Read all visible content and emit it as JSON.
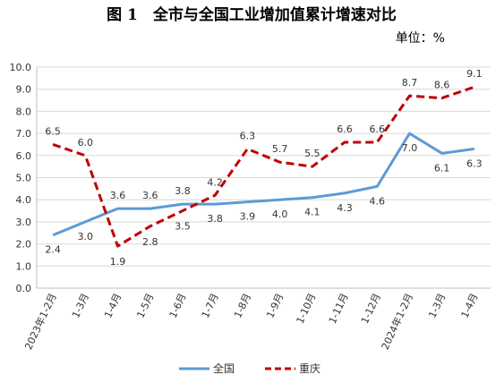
{
  "chart_data": {
    "type": "line",
    "title": "图 1　全市与全国工业增加值累计增速对比",
    "unit": "单位：%",
    "xlabel": "",
    "ylabel": "",
    "ylim": [
      0,
      10
    ],
    "yticks": [
      "0.0",
      "1.0",
      "2.0",
      "3.0",
      "4.0",
      "5.0",
      "6.0",
      "7.0",
      "8.0",
      "9.0",
      "10.0"
    ],
    "grid": true,
    "legend_position": "bottom",
    "categories": [
      "2023年1-2月",
      "1-3月",
      "1-4月",
      "1-5月",
      "1-6月",
      "1-7月",
      "1-8月",
      "1-9月",
      "1-10月",
      "1-11月",
      "1-12月",
      "2024年1-2月",
      "1-3月",
      "1-4月"
    ],
    "series": [
      {
        "name": "全国",
        "color": "#5B9BD5",
        "dash": "solid",
        "values": [
          2.4,
          3.0,
          3.6,
          3.6,
          3.8,
          3.8,
          3.9,
          4.0,
          4.1,
          4.3,
          4.6,
          7.0,
          6.1,
          6.3
        ],
        "labels": [
          "2.4",
          "3.0",
          "3.6",
          "3.6",
          "3.8",
          "3.8",
          "3.9",
          "4.0",
          "4.1",
          "4.3",
          "4.6",
          "7.0",
          "6.1",
          "6.3"
        ]
      },
      {
        "name": "重庆",
        "color": "#C00000",
        "dash": "dashed",
        "values": [
          6.5,
          6.0,
          1.9,
          2.8,
          3.5,
          4.2,
          6.3,
          5.7,
          5.5,
          6.6,
          6.6,
          8.7,
          8.6,
          9.1
        ],
        "labels": [
          "6.5",
          "6.0",
          "1.9",
          "2.8",
          "3.5",
          "4.2",
          "6.3",
          "5.7",
          "5.5",
          "6.6",
          "6.6",
          "8.7",
          "8.6",
          "9.1"
        ]
      }
    ]
  }
}
